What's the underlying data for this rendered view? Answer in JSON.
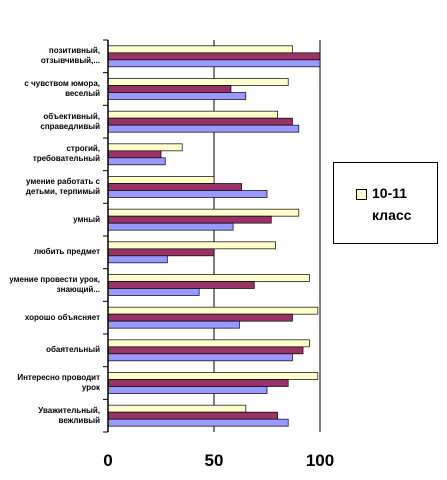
{
  "chart_data": {
    "type": "bar",
    "orientation": "horizontal",
    "categories": [
      "позитивный, отзывчивый,...",
      "с чувством юмора, веселый",
      "объективный, справедливый",
      "строгий, требовательный",
      "умение работать с детьми, терпимый",
      "умный",
      "любить предмет",
      "умение провести урок, знающий...",
      "хорошо объясняет",
      "обаятельный",
      "Интересно проводит урок",
      "Уважительный, вежливый"
    ],
    "series": [
      {
        "name": "10-11 класс",
        "color": "#ffffcc",
        "values": [
          87,
          85,
          80,
          35,
          50,
          90,
          79,
          95,
          99,
          95,
          99,
          65
        ]
      },
      {
        "color": "#993366",
        "values": [
          100,
          58,
          87,
          25,
          63,
          77,
          50,
          69,
          87,
          92,
          85,
          80
        ]
      },
      {
        "color": "#9999ff",
        "values": [
          100,
          65,
          90,
          27,
          75,
          59,
          28,
          43,
          62,
          87,
          75,
          85
        ]
      }
    ],
    "xlim": [
      0,
      100
    ],
    "xticks": [
      0,
      50,
      100
    ],
    "grid": true,
    "legend": "right"
  }
}
